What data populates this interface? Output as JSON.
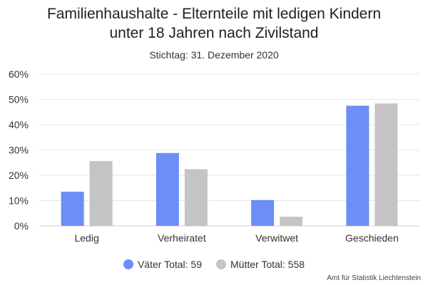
{
  "chart_data": {
    "type": "bar",
    "title_lines": [
      "Familienhaushalte - Elternteile mit ledigen Kindern",
      "unter 18 Jahren nach Zivilstand"
    ],
    "subtitle": "Stichtag: 31. Dezember 2020",
    "categories": [
      "Ledig",
      "Verheiratet",
      "Verwitwet",
      "Geschieden"
    ],
    "series": [
      {
        "name": "Väter Total: 59",
        "color": "#6b8ef7",
        "values": [
          13.5,
          28.8,
          10.2,
          47.5
        ]
      },
      {
        "name": "Mütter Total: 558",
        "color": "#c4c4c4",
        "values": [
          25.6,
          22.4,
          3.6,
          48.4
        ]
      }
    ],
    "y_ticks": [
      "0%",
      "10%",
      "20%",
      "30%",
      "40%",
      "50%",
      "60%"
    ],
    "ylim": [
      0,
      60
    ],
    "grid": true,
    "legend_position": "bottom-center",
    "credits": "Amt für Statistik Liechtenstein"
  }
}
